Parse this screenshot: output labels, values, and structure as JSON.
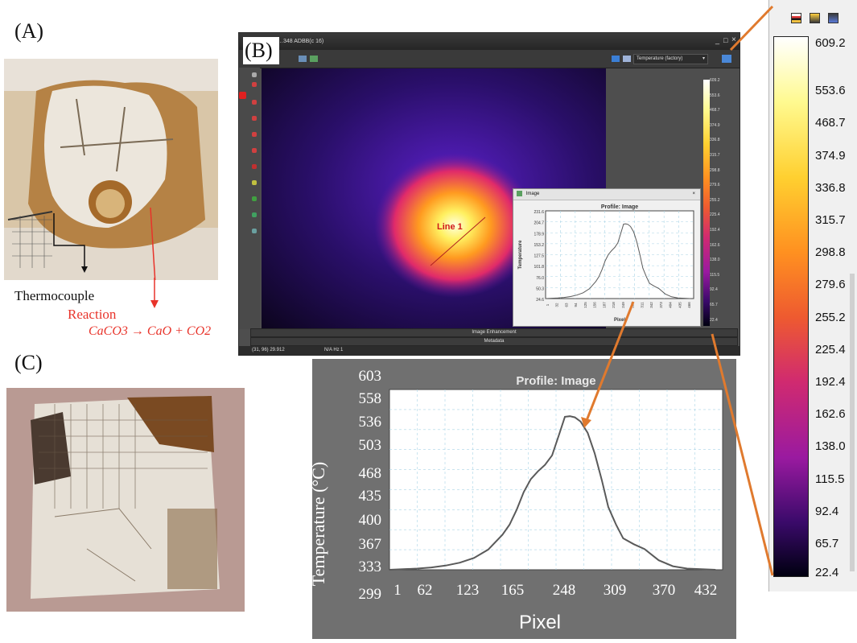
{
  "labels": {
    "panel_a": "(A)",
    "panel_b": "(B)",
    "panel_c": "(C)",
    "thermocouple": "Thermocouple",
    "reaction": "Reaction",
    "equation": "CaCO3 → CaO + CO2"
  },
  "window": {
    "title": "…348 ADBB(c 16)",
    "palette_select": "Temperature (factory)",
    "line_label": "Line 1",
    "strip_enhancement": "Image Enhancement",
    "strip_metadata": "Metadata",
    "status_coords": "(31, 96) 29.912",
    "status_hz": "N/A Hz",
    "status_count": "1"
  },
  "small_colorbar_ticks": [
    "609.2",
    "553.6",
    "468.7",
    "374.9",
    "336.8",
    "315.7",
    "298.8",
    "279.6",
    "255.2",
    "225.4",
    "192.4",
    "162.6",
    "138.0",
    "115.5",
    "92.4",
    "65.7",
    "22.4"
  ],
  "small_profile": {
    "window_title": "Image",
    "close": "×",
    "title": "Profile: Image",
    "ylabel": "Temperature",
    "xlabel": "Pixel",
    "yticks": [
      "231.6",
      "204.7",
      "178.9",
      "153.2",
      "127.5",
      "101.8",
      "76.0",
      "50.3",
      "24.6"
    ],
    "xticks": [
      "1",
      "32",
      "63",
      "94",
      "125",
      "156",
      "187",
      "218",
      "249",
      "280",
      "311",
      "342",
      "373",
      "404",
      "435",
      "466"
    ]
  },
  "big_profile": {
    "title": "Profile: Image",
    "ylabel": "Temperature (°C)",
    "xlabel": "Pixel",
    "yticks": [
      "603",
      "558",
      "536",
      "503",
      "468",
      "435",
      "400",
      "367",
      "333",
      "299"
    ],
    "xticks": [
      "1",
      "62",
      "123",
      "165",
      "248",
      "309",
      "370",
      "432"
    ]
  },
  "big_colorbar_ticks": [
    "609.2",
    "553.6",
    "468.7",
    "374.9",
    "336.8",
    "315.7",
    "298.8",
    "279.6",
    "255.2",
    "225.4",
    "192.4",
    "162.6",
    "138.0",
    "115.5",
    "92.4",
    "65.7",
    "22.4"
  ],
  "colors": {
    "annotation_red": "#e8332a",
    "arrow_orange": "#e07a2e",
    "plot_line": "#5a5a5a",
    "plot_grid": "#a9d4e6"
  },
  "chart_data": {
    "type": "line",
    "title": "Profile: Image",
    "xlabel": "Pixel",
    "ylabel": "Temperature (°C)",
    "x": [
      1,
      20,
      40,
      60,
      80,
      100,
      120,
      140,
      160,
      170,
      180,
      190,
      200,
      210,
      220,
      230,
      240,
      248,
      255,
      262,
      270,
      280,
      290,
      300,
      309,
      320,
      330,
      345,
      360,
      380,
      400,
      420,
      440,
      460
    ],
    "y": [
      299,
      300,
      301,
      303,
      306,
      311,
      319,
      333,
      358,
      375,
      400,
      430,
      452,
      465,
      476,
      492,
      528,
      557,
      558,
      556,
      549,
      530,
      495,
      450,
      405,
      375,
      352,
      342,
      334,
      315,
      305,
      301,
      300,
      299
    ],
    "xlim": [
      1,
      470
    ],
    "ylim": [
      299,
      603
    ],
    "grid": true
  }
}
